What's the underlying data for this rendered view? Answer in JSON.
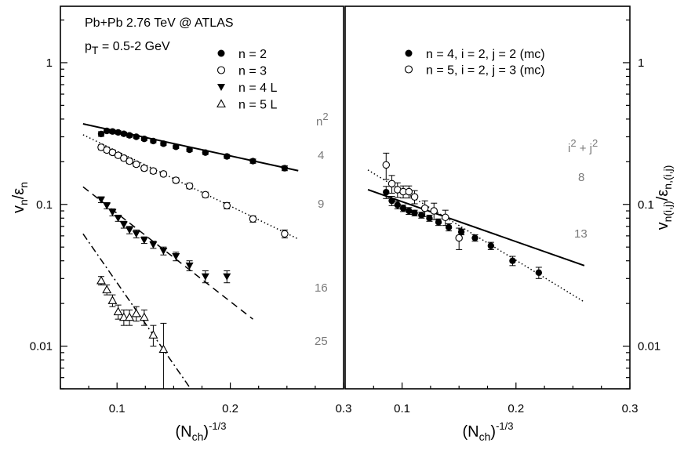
{
  "chart_data": [
    {
      "type": "scatter",
      "panel": "left",
      "title": "Pb+Pb 2.76 TeV @ ATLAS",
      "subtitle": "p_T = 0.5-2 GeV",
      "xlabel": "(N_ch)^-1/3",
      "ylabel": "v_n/ε_n",
      "yscale": "log",
      "xlim": [
        0.05,
        0.3
      ],
      "ylim": [
        0.005,
        2.5
      ],
      "xticks": [
        0.1,
        0.2,
        0.3
      ],
      "yticks": [
        0.01,
        0.1,
        1
      ],
      "right_annotations": {
        "header": "n²",
        "values": [
          "4",
          "9",
          "16",
          "25"
        ]
      },
      "series": [
        {
          "name": "n = 2",
          "marker": "filled-circle",
          "x": [
            0.086,
            0.091,
            0.096,
            0.101,
            0.106,
            0.111,
            0.117,
            0.124,
            0.132,
            0.141,
            0.152,
            0.164,
            0.178,
            0.197,
            0.22,
            0.248
          ],
          "y": [
            0.314,
            0.33,
            0.327,
            0.322,
            0.315,
            0.307,
            0.3,
            0.29,
            0.28,
            0.268,
            0.255,
            0.243,
            0.232,
            0.218,
            0.202,
            0.18
          ],
          "err": [
            0.012,
            0.01,
            0.01,
            0.009,
            0.009,
            0.009,
            0.008,
            0.008,
            0.008,
            0.007,
            0.007,
            0.007,
            0.007,
            0.007,
            0.007,
            0.007
          ]
        },
        {
          "name": "n = 3",
          "marker": "open-circle",
          "x": [
            0.086,
            0.091,
            0.096,
            0.101,
            0.106,
            0.111,
            0.117,
            0.124,
            0.132,
            0.141,
            0.152,
            0.164,
            0.178,
            0.197,
            0.22,
            0.248
          ],
          "y": [
            0.253,
            0.242,
            0.233,
            0.222,
            0.212,
            0.202,
            0.192,
            0.18,
            0.172,
            0.164,
            0.148,
            0.135,
            0.117,
            0.098,
            0.079,
            0.062
          ],
          "err": [
            0.01,
            0.009,
            0.009,
            0.008,
            0.008,
            0.008,
            0.007,
            0.007,
            0.007,
            0.006,
            0.006,
            0.006,
            0.005,
            0.005,
            0.004,
            0.004
          ]
        },
        {
          "name": "n = 4 L",
          "marker": "filled-triangle-down",
          "x": [
            0.086,
            0.091,
            0.096,
            0.101,
            0.106,
            0.111,
            0.117,
            0.124,
            0.132,
            0.141,
            0.152,
            0.164,
            0.178,
            0.197
          ],
          "y": [
            0.108,
            0.098,
            0.088,
            0.08,
            0.072,
            0.066,
            0.062,
            0.056,
            0.052,
            0.047,
            0.043,
            0.037,
            0.031,
            0.031
          ],
          "err": [
            0.005,
            0.005,
            0.005,
            0.004,
            0.004,
            0.004,
            0.004,
            0.003,
            0.003,
            0.003,
            0.003,
            0.003,
            0.003,
            0.003
          ]
        },
        {
          "name": "n = 5 L",
          "marker": "open-triangle-up",
          "x": [
            0.086,
            0.091,
            0.096,
            0.101,
            0.106,
            0.111,
            0.117,
            0.124,
            0.132,
            0.141
          ],
          "y": [
            0.029,
            0.025,
            0.021,
            0.0175,
            0.016,
            0.016,
            0.017,
            0.016,
            0.012,
            0.0095
          ],
          "err": [
            0.002,
            0.002,
            0.002,
            0.002,
            0.002,
            0.002,
            0.002,
            0.002,
            0.002,
            0.005
          ]
        }
      ],
      "fits": [
        {
          "series": "n = 2",
          "style": "solid",
          "x": [
            0.07,
            0.26
          ],
          "y": [
            0.37,
            0.173
          ]
        },
        {
          "series": "n = 3",
          "style": "dotted",
          "x": [
            0.07,
            0.26
          ],
          "y": [
            0.31,
            0.057
          ]
        },
        {
          "series": "n = 4 L",
          "style": "dashed",
          "x": [
            0.07,
            0.22
          ],
          "y": [
            0.133,
            0.0155
          ]
        },
        {
          "series": "n = 5 L",
          "style": "dash-dot",
          "x": [
            0.07,
            0.165
          ],
          "y": [
            0.062,
            0.005
          ]
        }
      ]
    },
    {
      "type": "scatter",
      "panel": "right",
      "xlabel": "(N_ch)^-1/3",
      "ylabel": "v_n(i,j)/ε_n,(i,j)",
      "yscale": "log",
      "xlim": [
        0.05,
        0.3
      ],
      "ylim": [
        0.005,
        2.5
      ],
      "xticks": [
        0.1,
        0.2,
        0.3
      ],
      "yticks": [
        0.01,
        0.1,
        1
      ],
      "right_annotations": {
        "header": "i² + j²",
        "values": [
          "8",
          "13"
        ]
      },
      "series": [
        {
          "name": "n = 4, i = 2, j = 2 (mc)",
          "marker": "filled-circle",
          "x": [
            0.086,
            0.091,
            0.096,
            0.101,
            0.106,
            0.111,
            0.117,
            0.124,
            0.132,
            0.141,
            0.152,
            0.164,
            0.178,
            0.197,
            0.22
          ],
          "y": [
            0.122,
            0.106,
            0.099,
            0.094,
            0.09,
            0.087,
            0.084,
            0.08,
            0.075,
            0.069,
            0.064,
            0.058,
            0.051,
            0.04,
            0.033
          ],
          "err": [
            0.012,
            0.008,
            0.006,
            0.005,
            0.005,
            0.004,
            0.004,
            0.004,
            0.004,
            0.004,
            0.003,
            0.003,
            0.003,
            0.003,
            0.003
          ]
        },
        {
          "name": "n = 5, i = 2, j = 3 (mc)",
          "marker": "open-circle",
          "x": [
            0.086,
            0.091,
            0.096,
            0.101,
            0.106,
            0.111,
            0.12,
            0.128,
            0.138,
            0.15
          ],
          "y": [
            0.19,
            0.14,
            0.127,
            0.123,
            0.123,
            0.113,
            0.094,
            0.09,
            0.081,
            0.058
          ],
          "err": [
            0.04,
            0.02,
            0.015,
            0.012,
            0.012,
            0.012,
            0.012,
            0.012,
            0.01,
            0.01
          ]
        }
      ],
      "fits": [
        {
          "series": "n = 4, i = 2, j = 2 (mc)",
          "style": "solid",
          "x": [
            0.07,
            0.26
          ],
          "y": [
            0.127,
            0.037
          ]
        },
        {
          "series": "n = 5, i = 2, j = 3 (mc)",
          "style": "dotted",
          "x": [
            0.07,
            0.26
          ],
          "y": [
            0.175,
            0.0205
          ]
        }
      ]
    }
  ]
}
